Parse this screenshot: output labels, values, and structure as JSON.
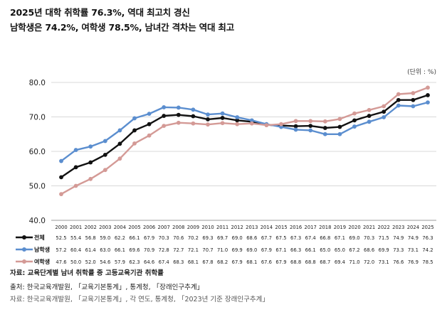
{
  "header": {
    "title": "2025년 대학 취학률 76.3%, 역대 최고치 경신",
    "subtitle": "남학생은 74.2%, 여학생 78.5%, 남녀간 격차는 역대 최고"
  },
  "footer": {
    "source_note": "자료: 교육단계별 남녀 취학률 중 고등교육기관 취학률",
    "origin": "출처: 한국교육개발원, 「교육기본통계」, 통계청, 「장래인구추계」",
    "origin_cut": "자료: 한국교육개발원, 「교육기본통계」, 각 연도, 통계청, 「2023년 기준 장래인구추계」"
  },
  "chart_data": {
    "type": "line",
    "unit_label": "(단위 : %)",
    "x": [
      "2000",
      "2001",
      "2002",
      "2003",
      "2004",
      "2005",
      "2006",
      "2007",
      "2008",
      "2009",
      "2010",
      "2011",
      "2012",
      "2013",
      "2014",
      "2015",
      "2016",
      "2017",
      "2018",
      "2019",
      "2020",
      "2021",
      "2022",
      "2023",
      "2024",
      "2025"
    ],
    "ylim": [
      40,
      80
    ],
    "yticks": [
      "40.0",
      "50.0",
      "60.0",
      "70.0",
      "80.0"
    ],
    "grid": true,
    "legend": "table-below",
    "series": [
      {
        "name": "전체",
        "color": "#111111",
        "values": [
          52.5,
          55.4,
          56.8,
          59.0,
          62.2,
          66.1,
          67.9,
          70.3,
          70.6,
          70.2,
          69.3,
          69.7,
          69.0,
          68.6,
          67.7,
          67.5,
          67.3,
          67.4,
          66.8,
          67.1,
          69.0,
          70.3,
          71.5,
          74.9,
          74.9,
          76.3
        ]
      },
      {
        "name": "남학생",
        "color": "#5b8ecf",
        "values": [
          57.2,
          60.4,
          61.4,
          63.0,
          66.1,
          69.6,
          70.9,
          72.8,
          72.7,
          72.1,
          70.7,
          71.0,
          69.9,
          69.0,
          67.9,
          67.1,
          66.3,
          66.1,
          65.0,
          65.0,
          67.2,
          68.6,
          69.9,
          73.3,
          73.1,
          74.2
        ]
      },
      {
        "name": "여학생",
        "color": "#d49a96",
        "values": [
          47.6,
          50.0,
          52.0,
          54.6,
          57.9,
          62.3,
          64.6,
          67.4,
          68.3,
          68.1,
          67.8,
          68.2,
          67.9,
          68.1,
          67.6,
          67.9,
          68.8,
          68.8,
          68.7,
          69.4,
          71.0,
          72.0,
          73.1,
          76.6,
          76.9,
          78.5
        ]
      }
    ]
  }
}
